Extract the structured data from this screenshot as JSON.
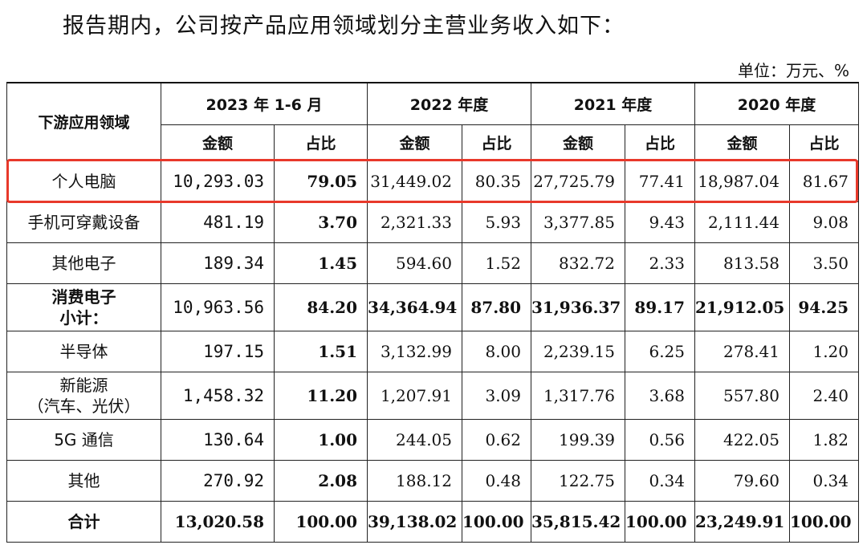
{
  "intro": "报告期内，公司按产品应用领域划分主营业务收入如下：",
  "unit": "单位：万元、%",
  "table": {
    "corner": "下游应用领域",
    "periods": [
      "2023 年 1-6 月",
      "2022 年度",
      "2021 年度",
      "2020 年度"
    ],
    "sub_amount": "金额",
    "sub_ratio": "占比",
    "rows": [
      {
        "label": [
          "个人电脑"
        ],
        "bold_label": false,
        "values": [
          "10,293.03",
          "79.05",
          "31,449.02",
          "80.35",
          "27,725.79",
          "77.41",
          "18,987.04",
          "81.67"
        ],
        "highlight": true
      },
      {
        "label": [
          "手机可穿戴设备"
        ],
        "bold_label": false,
        "values": [
          "481.19",
          "3.70",
          "2,321.33",
          "5.93",
          "3,377.85",
          "9.43",
          "2,111.44",
          "9.08"
        ]
      },
      {
        "label": [
          "其他电子"
        ],
        "bold_label": false,
        "values": [
          "189.34",
          "1.45",
          "594.60",
          "1.52",
          "832.72",
          "2.33",
          "813.58",
          "3.50"
        ]
      },
      {
        "label": [
          "消费电子",
          "小计："
        ],
        "bold_label": true,
        "values": [
          "10,963.56",
          "84.20",
          "34,364.94",
          "87.80",
          "31,936.37",
          "89.17",
          "21,912.05",
          "94.25"
        ]
      },
      {
        "label": [
          "半导体"
        ],
        "bold_label": false,
        "values": [
          "197.15",
          "1.51",
          "3,132.99",
          "8.00",
          "2,239.15",
          "6.25",
          "278.41",
          "1.20"
        ]
      },
      {
        "label": [
          "新能源",
          "（汽车、光伏）"
        ],
        "bold_label": false,
        "values": [
          "1,458.32",
          "11.20",
          "1,207.91",
          "3.09",
          "1,317.76",
          "3.68",
          "557.80",
          "2.40"
        ]
      },
      {
        "label": [
          "5G 通信"
        ],
        "bold_label": false,
        "values": [
          "130.64",
          "1.00",
          "244.05",
          "0.62",
          "199.39",
          "0.56",
          "422.05",
          "1.82"
        ]
      },
      {
        "label": [
          "其他"
        ],
        "bold_label": false,
        "values": [
          "270.92",
          "2.08",
          "188.12",
          "0.48",
          "122.75",
          "0.34",
          "79.60",
          "0.34"
        ]
      },
      {
        "label": [
          "合计"
        ],
        "bold_label": true,
        "values": [
          "13,020.58",
          "100.00",
          "39,138.02",
          "100.00",
          "35,815.42",
          "100.00",
          "23,249.91",
          "100.00"
        ]
      }
    ]
  },
  "colors": {
    "highlight_border": "#e8392b",
    "text": "#111111"
  }
}
